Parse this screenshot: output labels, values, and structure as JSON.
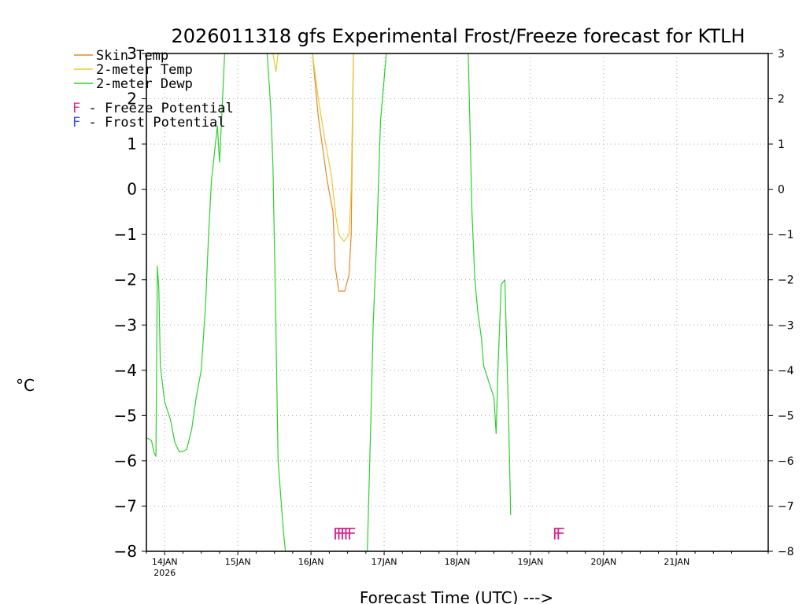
{
  "chart_data": {
    "type": "line",
    "title": "2026011318 gfs Experimental Frost/Freeze forecast for KTLH",
    "xlabel": "Forecast Time (UTC) --->",
    "ylabel": "°C",
    "ylim": [
      -8,
      3
    ],
    "xlim": [
      13.75,
      22.25
    ],
    "yticks": [
      3,
      2,
      1,
      0,
      -1,
      -2,
      -3,
      -4,
      -5,
      -6,
      -7,
      -8
    ],
    "xticks": [
      {
        "x": 14,
        "label": "14JAN",
        "sublabel": "2026"
      },
      {
        "x": 15,
        "label": "15JAN",
        "sublabel": ""
      },
      {
        "x": 16,
        "label": "16JAN",
        "sublabel": ""
      },
      {
        "x": 17,
        "label": "17JAN",
        "sublabel": ""
      },
      {
        "x": 18,
        "label": "18JAN",
        "sublabel": ""
      },
      {
        "x": 19,
        "label": "19JAN",
        "sublabel": ""
      },
      {
        "x": 20,
        "label": "20JAN",
        "sublabel": ""
      },
      {
        "x": 21,
        "label": "21JAN",
        "sublabel": ""
      }
    ],
    "grid": true,
    "series": [
      {
        "name": "Skin Temp",
        "color": "#e08a2c",
        "points": [
          [
            16.02,
            3.0
          ],
          [
            16.1,
            1.6
          ],
          [
            16.22,
            0.2
          ],
          [
            16.3,
            -0.5
          ],
          [
            16.33,
            -1.7
          ],
          [
            16.38,
            -2.25
          ],
          [
            16.46,
            -2.25
          ],
          [
            16.52,
            -1.9
          ],
          [
            16.55,
            -1.0
          ],
          [
            16.56,
            0.5
          ],
          [
            16.58,
            3.0
          ]
        ]
      },
      {
        "name": "2-meter Temp",
        "color": "#e8c832",
        "points": [
          [
            15.48,
            3.0
          ],
          [
            15.52,
            2.6
          ],
          [
            15.55,
            3.0
          ],
          [
            16.02,
            3.0
          ],
          [
            16.1,
            2.0
          ],
          [
            16.2,
            1.0
          ],
          [
            16.28,
            0.3
          ],
          [
            16.34,
            -0.6
          ],
          [
            16.38,
            -1.0
          ],
          [
            16.45,
            -1.15
          ],
          [
            16.52,
            -1.0
          ],
          [
            16.55,
            0.0
          ],
          [
            16.58,
            3.0
          ]
        ]
      },
      {
        "name": "2-meter Dewp",
        "color": "#2fcf2f",
        "points": [
          [
            13.76,
            -5.5
          ],
          [
            13.82,
            -5.55
          ],
          [
            13.85,
            -5.8
          ],
          [
            13.88,
            -5.9
          ],
          [
            13.9,
            -1.7
          ],
          [
            13.92,
            -2.2
          ],
          [
            13.94,
            -3.9
          ],
          [
            14.0,
            -4.7
          ],
          [
            14.08,
            -5.1
          ],
          [
            14.14,
            -5.6
          ],
          [
            14.2,
            -5.8
          ],
          [
            14.24,
            -5.8
          ],
          [
            14.3,
            -5.75
          ],
          [
            14.37,
            -5.3
          ],
          [
            14.43,
            -4.6
          ],
          [
            14.5,
            -4.0
          ],
          [
            14.56,
            -2.5
          ],
          [
            14.6,
            -1.0
          ],
          [
            14.64,
            0.2
          ],
          [
            14.72,
            1.4
          ],
          [
            14.75,
            0.6
          ],
          [
            14.78,
            1.6
          ],
          [
            14.82,
            3.0
          ],
          [
            15.4,
            3.0
          ],
          [
            15.45,
            1.8
          ],
          [
            15.48,
            0.5
          ],
          [
            15.52,
            -3.0
          ],
          [
            15.55,
            -6.0
          ],
          [
            15.62,
            -7.5
          ],
          [
            15.65,
            -8.0
          ],
          [
            16.77,
            -8.0
          ],
          [
            16.82,
            -5.0
          ],
          [
            16.85,
            -3.0
          ],
          [
            16.9,
            -1.0
          ],
          [
            16.95,
            1.5
          ],
          [
            17.03,
            3.0
          ],
          [
            18.15,
            3.0
          ],
          [
            18.2,
            -0.5
          ],
          [
            18.24,
            -2.0
          ],
          [
            18.28,
            -2.7
          ],
          [
            18.33,
            -3.3
          ],
          [
            18.36,
            -3.9
          ],
          [
            18.42,
            -4.2
          ],
          [
            18.5,
            -4.6
          ],
          [
            18.53,
            -5.4
          ],
          [
            18.56,
            -3.8
          ],
          [
            18.6,
            -2.1
          ],
          [
            18.65,
            -2.0
          ],
          [
            18.7,
            -5.0
          ],
          [
            18.73,
            -7.2
          ]
        ]
      }
    ],
    "annotations": [
      {
        "text": "FFFFF",
        "x": 16.3,
        "y": -7.6,
        "color": "#d42c8e",
        "note": "Freeze Potential"
      },
      {
        "text": "FF",
        "x": 19.3,
        "y": -7.6,
        "color": "#d42c8e",
        "note": "Freeze Potential"
      }
    ],
    "legend": [
      {
        "label": "Skin Temp",
        "color": "#e08a2c"
      },
      {
        "label": "2-meter Temp",
        "color": "#e8c832"
      },
      {
        "label": "2-meter Dewp",
        "color": "#2fcf2f"
      }
    ],
    "flag_legend": [
      {
        "letter": "F",
        "label": " - Freeze Potential",
        "color": "#d42c8e"
      },
      {
        "letter": "F",
        "label": " - Frost Potential",
        "color": "#3a52d8"
      }
    ]
  }
}
